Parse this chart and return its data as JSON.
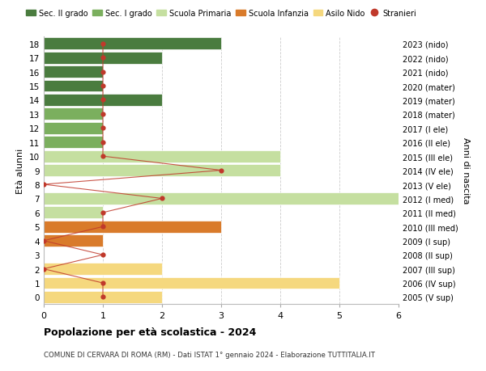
{
  "ages": [
    18,
    17,
    16,
    15,
    14,
    13,
    12,
    11,
    10,
    9,
    8,
    7,
    6,
    5,
    4,
    3,
    2,
    1,
    0
  ],
  "years": [
    "2005 (V sup)",
    "2006 (IV sup)",
    "2007 (III sup)",
    "2008 (II sup)",
    "2009 (I sup)",
    "2010 (III med)",
    "2011 (II med)",
    "2012 (I med)",
    "2013 (V ele)",
    "2014 (IV ele)",
    "2015 (III ele)",
    "2016 (II ele)",
    "2017 (I ele)",
    "2018 (mater)",
    "2019 (mater)",
    "2020 (mater)",
    "2021 (nido)",
    "2022 (nido)",
    "2023 (nido)"
  ],
  "bar_values": [
    3,
    2,
    1,
    1,
    2,
    1,
    1,
    1,
    4,
    4,
    0,
    6,
    1,
    3,
    1,
    0,
    2,
    5,
    2
  ],
  "bar_colors": [
    "#4a7c3f",
    "#4a7c3f",
    "#4a7c3f",
    "#4a7c3f",
    "#4a7c3f",
    "#7baf5e",
    "#7baf5e",
    "#7baf5e",
    "#c5dfa0",
    "#c5dfa0",
    "#c5dfa0",
    "#c5dfa0",
    "#c5dfa0",
    "#d97b2b",
    "#d97b2b",
    "#d97b2b",
    "#f5d87e",
    "#f5d87e",
    "#f5d87e"
  ],
  "stranieri_values": [
    1,
    1,
    1,
    1,
    1,
    1,
    1,
    1,
    1,
    3,
    0,
    2,
    1,
    1,
    0,
    1,
    0,
    1,
    1
  ],
  "stranieri_color": "#c0392b",
  "legend_labels": [
    "Sec. II grado",
    "Sec. I grado",
    "Scuola Primaria",
    "Scuola Infanzia",
    "Asilo Nido",
    "Stranieri"
  ],
  "legend_colors": [
    "#4a7c3f",
    "#7baf5e",
    "#c5dfa0",
    "#d97b2b",
    "#f5d87e",
    "#c0392b"
  ],
  "ylabel_left": "Età alunni",
  "ylabel_right": "Anni di nascita",
  "title": "Popolazione per età scolastica - 2024",
  "subtitle": "COMUNE DI CERVARA DI ROMA (RM) - Dati ISTAT 1° gennaio 2024 - Elaborazione TUTTITALIA.IT",
  "xlim": [
    0,
    6
  ],
  "xticks": [
    0,
    1,
    2,
    3,
    4,
    5,
    6
  ],
  "background_color": "#ffffff",
  "grid_color": "#cccccc"
}
